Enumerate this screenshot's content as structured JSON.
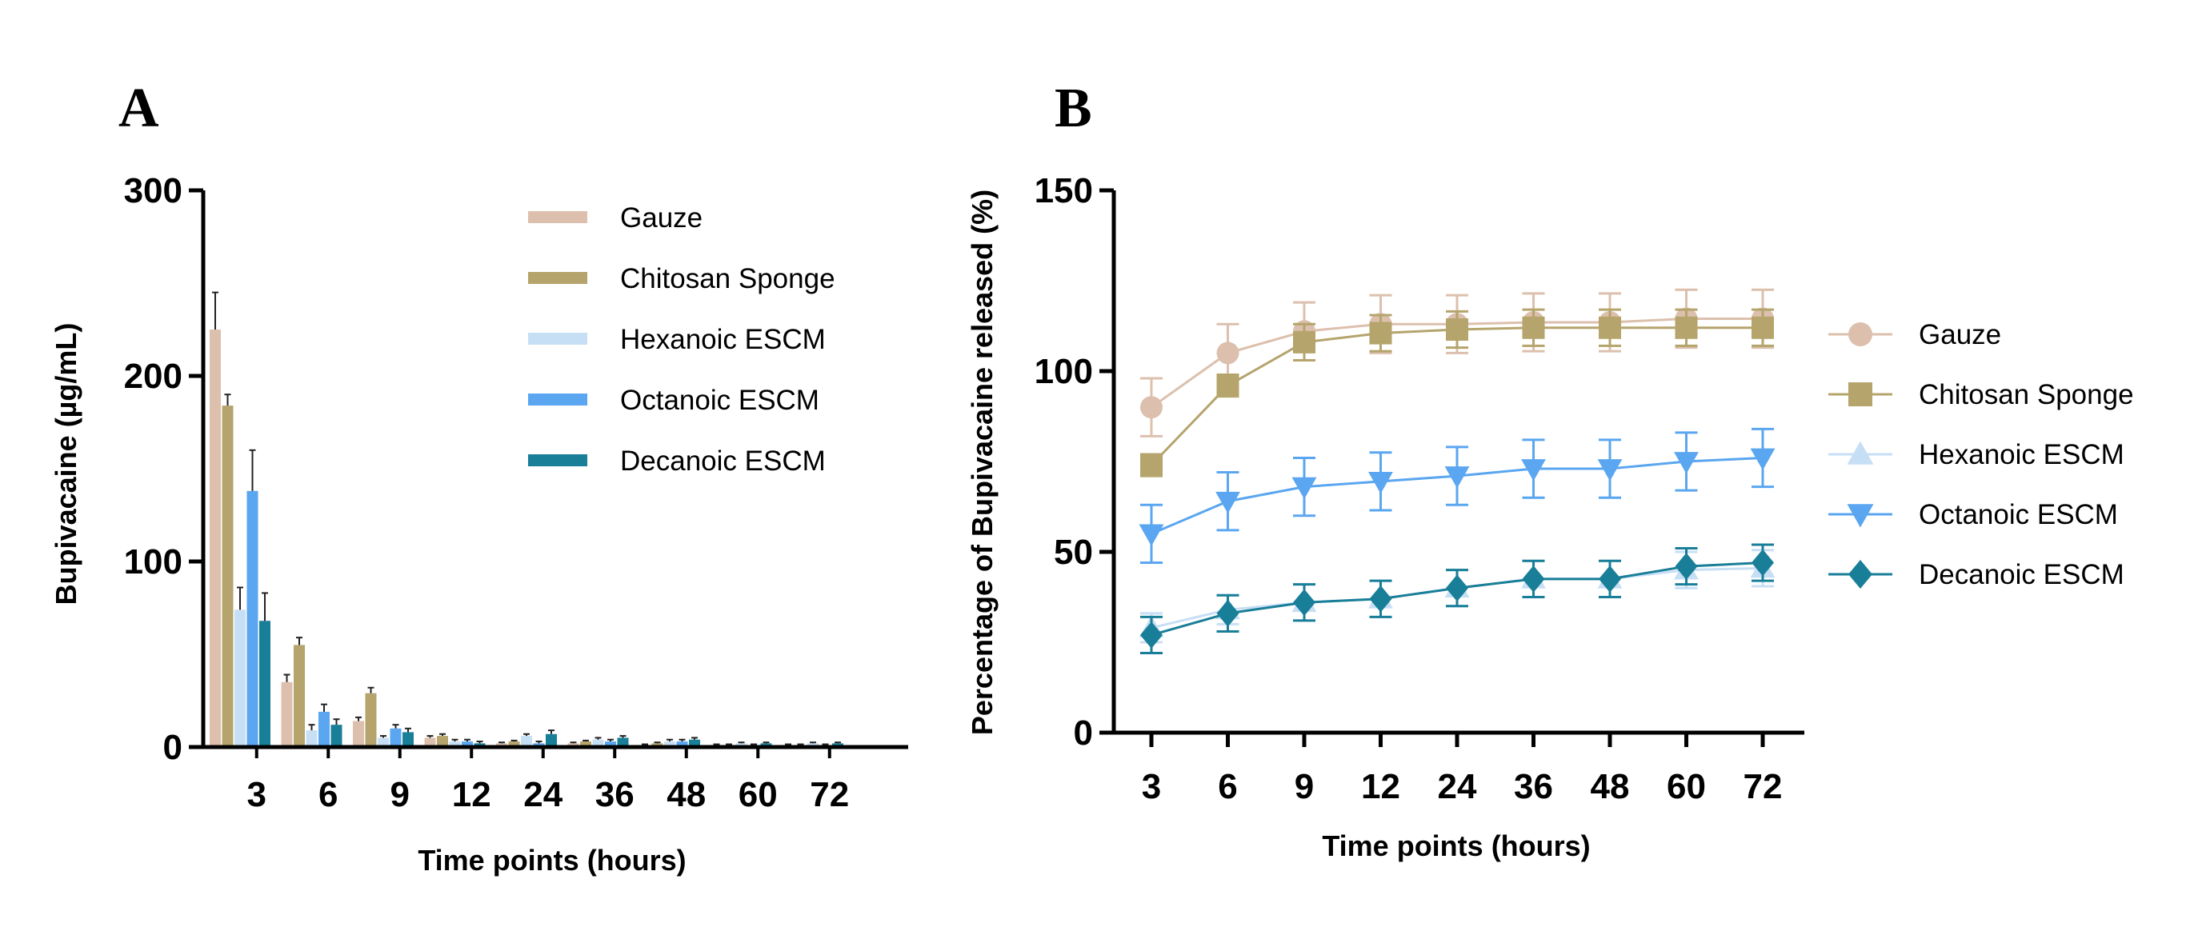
{
  "chart_data": [
    {
      "panel": "A",
      "type": "bar",
      "title": "",
      "xlabel": "Time points (hours)",
      "ylabel": "Bupivacaine (µg/mL)",
      "ylim": [
        0,
        300
      ],
      "yticks": [
        "0",
        "100",
        "200",
        "300"
      ],
      "categories": [
        "3",
        "6",
        "9",
        "12",
        "24",
        "36",
        "48",
        "60",
        "72"
      ],
      "legend_position": "top-right",
      "grid": false,
      "series": [
        {
          "name": "Gauze",
          "color": "#dcc0ad",
          "values": [
            225,
            35,
            14,
            5,
            2,
            2,
            1,
            1,
            1
          ],
          "errors": [
            20,
            4,
            2,
            1,
            0.5,
            0.5,
            0.5,
            0.5,
            0.5
          ]
        },
        {
          "name": "Chitosan Sponge",
          "color": "#b5a46c",
          "values": [
            184,
            55,
            29,
            6,
            3,
            3,
            2,
            1,
            1
          ],
          "errors": [
            6,
            4,
            3,
            1,
            0.5,
            0.5,
            0.5,
            0.5,
            0.5
          ]
        },
        {
          "name": "Hexanoic ESCM",
          "color": "#c7dff5",
          "values": [
            74,
            9,
            5,
            3,
            6,
            4,
            3,
            2,
            2
          ],
          "errors": [
            12,
            3,
            1,
            1,
            1,
            1,
            1,
            0.5,
            0.5
          ]
        },
        {
          "name": "Octanoic ESCM",
          "color": "#5aa6f0",
          "values": [
            138,
            19,
            10,
            3,
            2,
            3,
            3,
            1,
            1
          ],
          "errors": [
            22,
            4,
            2,
            1,
            1,
            1,
            1,
            0.5,
            0.5
          ]
        },
        {
          "name": "Decanoic ESCM",
          "color": "#197e98",
          "values": [
            68,
            12,
            8,
            2,
            7,
            5,
            4,
            2,
            2
          ],
          "errors": [
            15,
            3,
            2,
            1,
            2,
            1,
            1,
            0.5,
            0.5
          ]
        }
      ]
    },
    {
      "panel": "B",
      "type": "line",
      "title": "",
      "xlabel": "Time points (hours)",
      "ylabel": "Percentage of Bupivacaine released  (%)",
      "ylim": [
        0,
        150
      ],
      "yticks": [
        "0",
        "50",
        "100",
        "150"
      ],
      "categories": [
        "3",
        "6",
        "9",
        "12",
        "24",
        "36",
        "48",
        "60",
        "72"
      ],
      "legend_position": "right",
      "grid": false,
      "series": [
        {
          "name": "Gauze",
          "color": "#dcc0ad",
          "marker": "circle",
          "values": [
            90,
            105,
            111,
            113,
            113,
            113.5,
            113.5,
            114.5,
            114.5
          ],
          "errors": [
            8,
            8,
            8,
            8,
            8,
            8,
            8,
            8,
            8
          ]
        },
        {
          "name": "Chitosan Sponge",
          "color": "#b5a46c",
          "marker": "square",
          "values": [
            74,
            96,
            108,
            110.5,
            111.5,
            112,
            112,
            112,
            112
          ],
          "errors": [
            3,
            3,
            5,
            5,
            5,
            5,
            5,
            5,
            5
          ]
        },
        {
          "name": "Hexanoic ESCM",
          "color": "#c7dff5",
          "marker": "triangle-up",
          "values": [
            29,
            34,
            36,
            37,
            40,
            42.5,
            42.5,
            45,
            45.5
          ],
          "errors": [
            4,
            4,
            5,
            5,
            5,
            5,
            5,
            5,
            5
          ]
        },
        {
          "name": "Octanoic ESCM",
          "color": "#5aa6f0",
          "marker": "triangle-down",
          "values": [
            55,
            64,
            68,
            69.5,
            71,
            73,
            73,
            75,
            76
          ],
          "errors": [
            8,
            8,
            8,
            8,
            8,
            8,
            8,
            8,
            8
          ]
        },
        {
          "name": "Decanoic ESCM",
          "color": "#197e98",
          "marker": "diamond",
          "values": [
            27,
            33,
            36,
            37,
            40,
            42.5,
            42.5,
            46,
            47
          ],
          "errors": [
            5,
            5,
            5,
            5,
            5,
            5,
            5,
            5,
            5
          ]
        }
      ]
    }
  ]
}
